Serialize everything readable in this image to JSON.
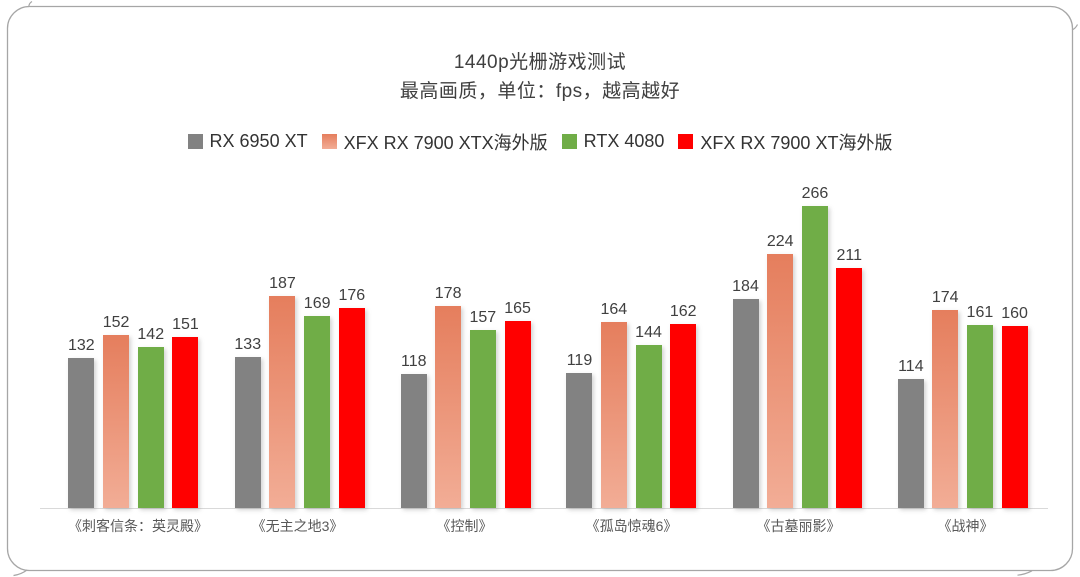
{
  "title": "1440p光栅游戏测试",
  "subtitle": "最高画质，单位：fps，越高越好",
  "frame_color": "#a6a6a6",
  "axis_color": "#d9d9d9",
  "label_color": "#404040",
  "legend": {
    "items": [
      {
        "label": "RX 6950 XT",
        "color": "#828282",
        "color_bottom": "#828282"
      },
      {
        "label": "XFX RX 7900 XTX海外版",
        "color": "#e57e5d",
        "color_bottom": "#f2ad96"
      },
      {
        "label": "RTX 4080",
        "color": "#70ad47",
        "color_bottom": "#70ad47"
      },
      {
        "label": "XFX RX 7900 XT海外版",
        "color": "#ff0000",
        "color_bottom": "#ff0000"
      }
    ]
  },
  "chart_data": {
    "type": "bar",
    "title": "1440p光栅游戏测试",
    "subtitle": "最高画质，单位：fps，越高越好",
    "xlabel": "",
    "ylabel": "fps",
    "ylim": [
      0,
      280
    ],
    "grid": false,
    "legend_position": "top",
    "data_labels": true,
    "categories": [
      "《刺客信条：英灵殿》",
      "《无主之地3》",
      "《控制》",
      "《孤岛惊魂6》",
      "《古墓丽影》",
      "《战神》"
    ],
    "series": [
      {
        "name": "RX 6950 XT",
        "color": "#828282",
        "color_bottom": "#828282",
        "values": [
          132,
          133,
          118,
          119,
          184,
          114
        ]
      },
      {
        "name": "XFX RX 7900 XTX海外版",
        "color": "#e57e5d",
        "color_bottom": "#f2ad96",
        "values": [
          152,
          187,
          178,
          164,
          224,
          174
        ]
      },
      {
        "name": "RTX 4080",
        "color": "#70ad47",
        "color_bottom": "#70ad47",
        "values": [
          142,
          169,
          157,
          144,
          266,
          161
        ]
      },
      {
        "name": "XFX RX 7900 XT海外版",
        "color": "#ff0000",
        "color_bottom": "#ff0000",
        "values": [
          151,
          176,
          165,
          162,
          211,
          160
        ]
      }
    ]
  }
}
